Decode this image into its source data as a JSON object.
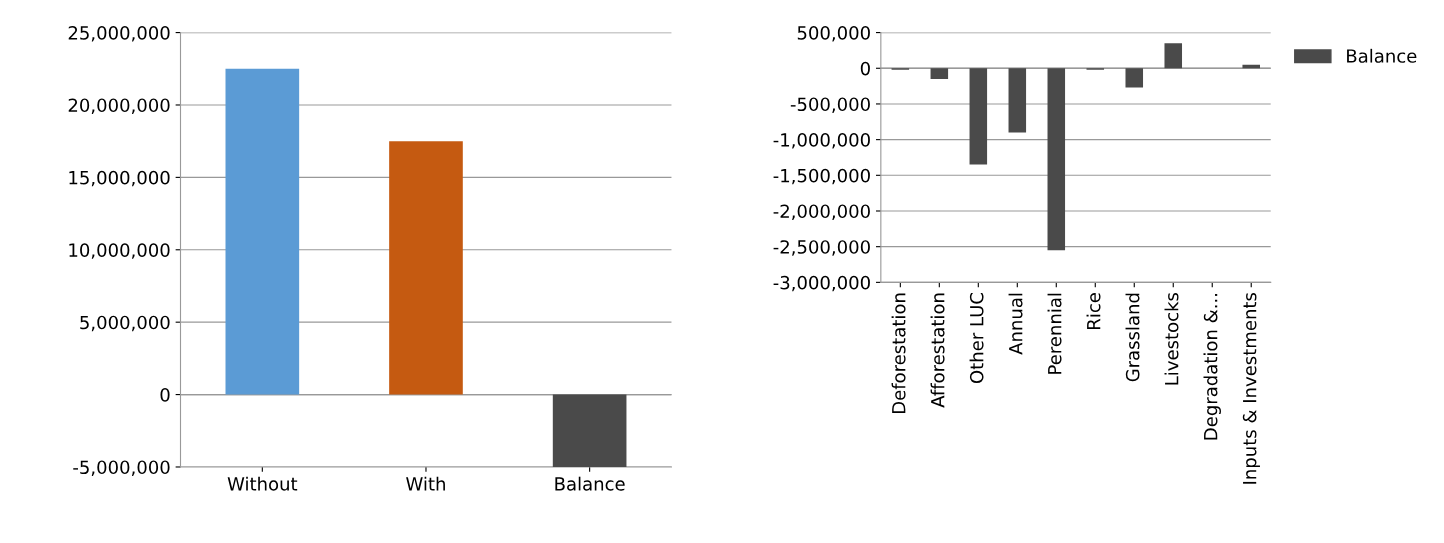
{
  "chart_data": [
    {
      "type": "bar",
      "categories": [
        "Without",
        "With",
        "Balance"
      ],
      "values": [
        22500000,
        17500000,
        -5000000
      ],
      "colors": [
        "#5b9bd5",
        "#c55a11",
        "#4a4a4a"
      ],
      "ylim": [
        -5000000,
        25000000
      ],
      "yticks": [
        {
          "value": -5000000,
          "label": "-5,000,000"
        },
        {
          "value": 0,
          "label": "0"
        },
        {
          "value": 5000000,
          "label": "5,000,000"
        },
        {
          "value": 10000000,
          "label": "10,000,000"
        },
        {
          "value": 15000000,
          "label": "15,000,000"
        },
        {
          "value": 20000000,
          "label": "20,000,000"
        },
        {
          "value": 25000000,
          "label": "25,000,000"
        }
      ],
      "grid": "y",
      "legend": false
    },
    {
      "type": "bar",
      "categories": [
        "Deforestation",
        "Afforestation",
        "Other LUC",
        "Annual",
        "Perennial",
        "Rice",
        "Grassland",
        "Livestocks",
        "Degradation &...",
        "Inputs & Investments"
      ],
      "series": [
        {
          "name": "Balance",
          "color": "#4a4a4a",
          "values": [
            -20000,
            -150000,
            -1350000,
            -900000,
            -2550000,
            -20000,
            -270000,
            350000,
            0,
            50000
          ]
        }
      ],
      "ylim": [
        -3000000,
        500000
      ],
      "yticks": [
        {
          "value": -3000000,
          "label": "-3,000,000"
        },
        {
          "value": -2500000,
          "label": "-2,500,000"
        },
        {
          "value": -2000000,
          "label": "-2,000,000"
        },
        {
          "value": -1500000,
          "label": "-1,500,000"
        },
        {
          "value": -1000000,
          "label": "-1,000,000"
        },
        {
          "value": -500000,
          "label": "-500,000"
        },
        {
          "value": 0,
          "label": "0"
        },
        {
          "value": 500000,
          "label": "500,000"
        }
      ],
      "grid": "y",
      "legend": "right"
    }
  ]
}
